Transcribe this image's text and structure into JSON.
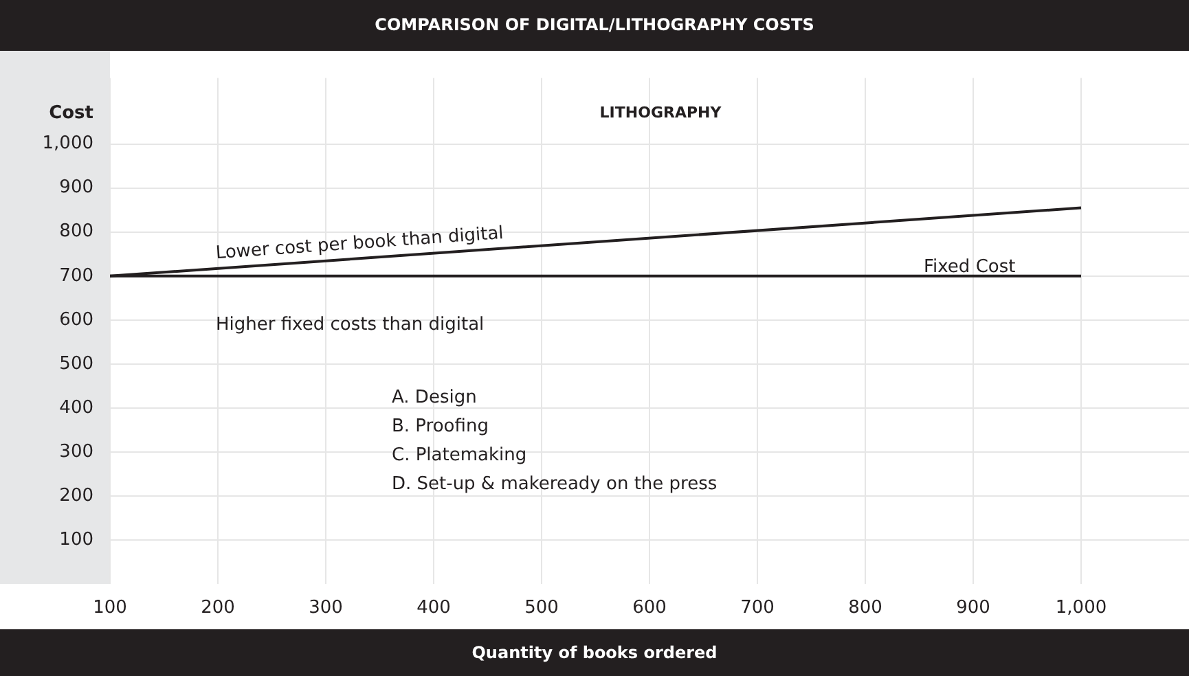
{
  "chart_data": {
    "type": "line",
    "title": "COMPARISON OF DIGITAL/LITHOGRAPHY COSTS",
    "subtitle": "LITHOGRAPHY",
    "xlabel": "Quantity  of books ordered",
    "ylabel": "Cost",
    "series": [
      {
        "color": "#231f20",
        "values": [
          700,
          855
        ]
      },
      {
        "color": "#231f20",
        "values": [
          700,
          700
        ]
      }
    ],
    "x": [
      100,
      1000
    ],
    "xlim": [
      100,
      1100
    ],
    "ylim": [
      0,
      1150
    ],
    "xticks": [
      100,
      200,
      300,
      400,
      500,
      600,
      700,
      800,
      900,
      {
        "value": 1000,
        "label": "1,000"
      }
    ],
    "yticks": [
      100,
      200,
      300,
      400,
      500,
      600,
      700,
      800,
      900,
      {
        "value": 1000,
        "label": "1,000"
      }
    ],
    "grid": true,
    "legend": false,
    "marker": "none",
    "line_style": "solid",
    "annotations": [
      "Lower cost per book than digital",
      "Fixed Cost",
      "Higher fixed costs than digital",
      "A. Design",
      "B. Proofing",
      "C. Platemaking",
      "D. Set-up & makeready on the press"
    ]
  }
}
